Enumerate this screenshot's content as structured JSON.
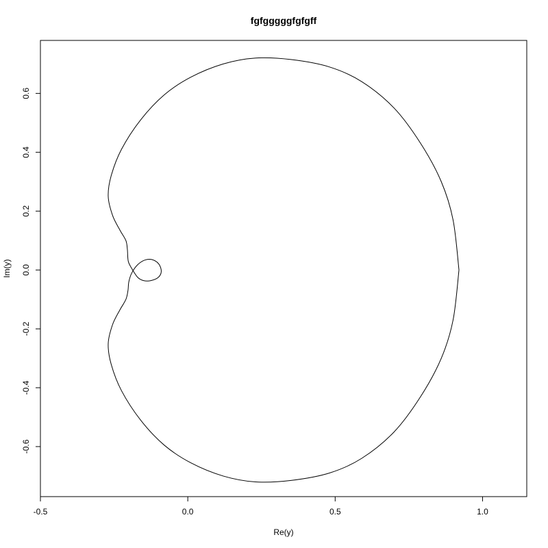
{
  "chart_data": {
    "type": "line",
    "title": "fgfgggggfgfgff",
    "xlabel": "Re(y)",
    "ylabel": "Im(y)",
    "xlim": [
      -0.5,
      1.15
    ],
    "ylim": [
      -0.77,
      0.78
    ],
    "x_ticks": [
      -0.5,
      0.0,
      0.5,
      1.0
    ],
    "x_tick_labels": [
      "-0.5",
      "0.0",
      "0.5",
      "1.0"
    ],
    "y_ticks": [
      -0.6,
      -0.4,
      -0.2,
      0.0,
      0.2,
      0.4,
      0.6
    ],
    "y_tick_labels": [
      "-0.6",
      "-0.4",
      "-0.2",
      "0.0",
      "0.2",
      "0.4",
      "0.6"
    ],
    "grid": false,
    "series": [
      {
        "points": [
          [
            0.92,
            0.0
          ],
          [
            0.9,
            0.17
          ],
          [
            0.86,
            0.3
          ],
          [
            0.79,
            0.43
          ],
          [
            0.7,
            0.55
          ],
          [
            0.59,
            0.64
          ],
          [
            0.48,
            0.69
          ],
          [
            0.35,
            0.715
          ],
          [
            0.23,
            0.72
          ],
          [
            0.12,
            0.7
          ],
          [
            0.01,
            0.655
          ],
          [
            -0.08,
            0.595
          ],
          [
            -0.16,
            0.51
          ],
          [
            -0.225,
            0.41
          ],
          [
            -0.26,
            0.32
          ],
          [
            -0.27,
            0.25
          ],
          [
            -0.255,
            0.185
          ],
          [
            -0.23,
            0.135
          ],
          [
            -0.21,
            0.1
          ],
          [
            -0.205,
            0.07
          ],
          [
            -0.202,
            0.03
          ],
          [
            -0.19,
            0.005
          ],
          [
            -0.17,
            -0.025
          ],
          [
            -0.15,
            -0.036
          ],
          [
            -0.125,
            -0.036
          ],
          [
            -0.1,
            -0.025
          ],
          [
            -0.09,
            -0.005
          ],
          [
            -0.098,
            0.02
          ],
          [
            -0.12,
            0.035
          ],
          [
            -0.145,
            0.034
          ],
          [
            -0.17,
            0.018
          ],
          [
            -0.19,
            -0.01
          ],
          [
            -0.2,
            -0.04
          ],
          [
            -0.203,
            -0.07
          ],
          [
            -0.21,
            -0.1
          ],
          [
            -0.23,
            -0.135
          ],
          [
            -0.255,
            -0.185
          ],
          [
            -0.27,
            -0.25
          ],
          [
            -0.26,
            -0.32
          ],
          [
            -0.225,
            -0.41
          ],
          [
            -0.16,
            -0.51
          ],
          [
            -0.08,
            -0.595
          ],
          [
            0.01,
            -0.655
          ],
          [
            0.12,
            -0.7
          ],
          [
            0.23,
            -0.72
          ],
          [
            0.35,
            -0.715
          ],
          [
            0.48,
            -0.69
          ],
          [
            0.59,
            -0.64
          ],
          [
            0.7,
            -0.55
          ],
          [
            0.79,
            -0.43
          ],
          [
            0.86,
            -0.3
          ],
          [
            0.9,
            -0.17
          ],
          [
            0.92,
            0.0
          ]
        ]
      }
    ]
  }
}
